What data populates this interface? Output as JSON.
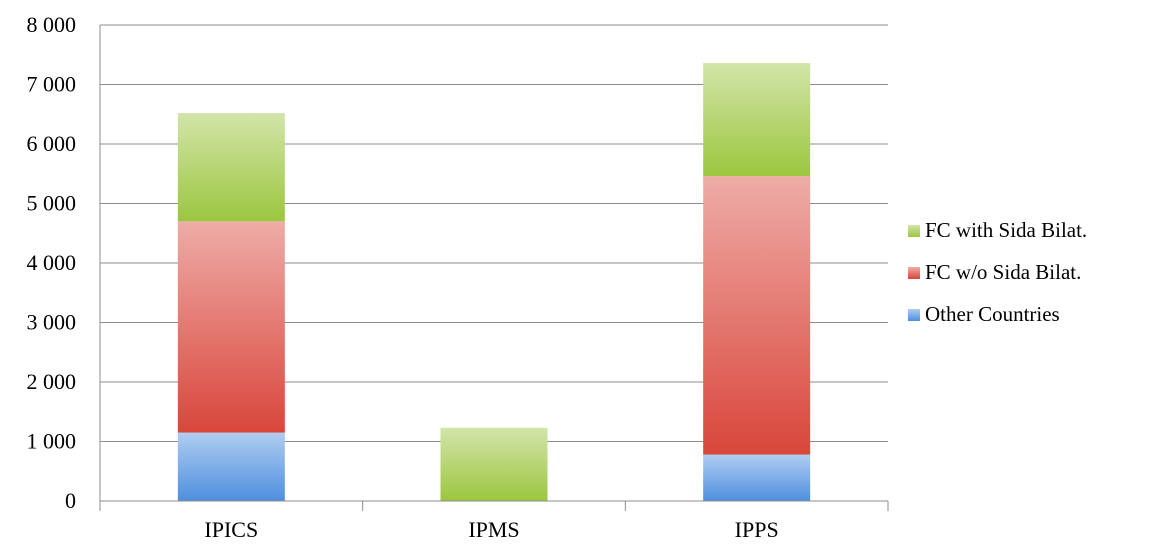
{
  "chart_data": {
    "type": "bar",
    "stacked": true,
    "categories": [
      "IPICS",
      "IPMS",
      "IPPS"
    ],
    "series": [
      {
        "name": "Other Countries",
        "values": [
          1150,
          0,
          780
        ],
        "color": "#4f8fdf"
      },
      {
        "name": "FC w/o Sida Bilat.",
        "values": [
          3550,
          0,
          4680
        ],
        "color": "#d9463b"
      },
      {
        "name": "FC with Sida Bilat.",
        "values": [
          1820,
          1230,
          1900
        ],
        "color": "#9cc63f"
      }
    ],
    "ylim": [
      0,
      8000
    ],
    "yticks": [
      0,
      1000,
      2000,
      3000,
      4000,
      5000,
      6000,
      7000,
      8000
    ],
    "ytick_labels": [
      "0",
      "1 000",
      "2 000",
      "3 000",
      "4 000",
      "5 000",
      "6 000",
      "7 000",
      "8 000"
    ],
    "grid": true,
    "legend_position": "right",
    "legend_order": [
      "FC with Sida Bilat.",
      "FC w/o Sida Bilat.",
      "Other Countries"
    ]
  }
}
